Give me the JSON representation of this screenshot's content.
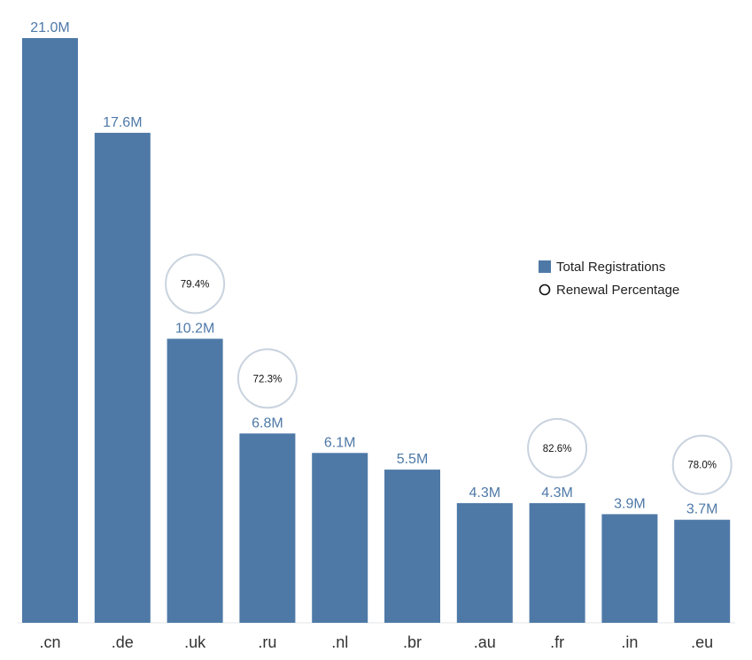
{
  "chart_data": {
    "type": "bar",
    "categories": [
      ".cn",
      ".de",
      ".uk",
      ".ru",
      ".nl",
      ".br",
      ".au",
      ".fr",
      ".in",
      ".eu"
    ],
    "series": [
      {
        "name": "Total Registrations",
        "values": [
          21.0,
          17.6,
          10.2,
          6.8,
          6.1,
          5.5,
          4.3,
          4.3,
          3.9,
          3.7
        ],
        "labels": [
          "21.0M",
          "17.6M",
          "10.2M",
          "6.8M",
          "6.1M",
          "5.5M",
          "4.3M",
          "4.3M",
          "3.9M",
          "3.7M"
        ]
      },
      {
        "name": "Renewal Percentage",
        "points": [
          {
            "category": ".uk",
            "value": 79.4,
            "label": "79.4%"
          },
          {
            "category": ".ru",
            "value": 72.3,
            "label": "72.3%"
          },
          {
            "category": ".fr",
            "value": 82.6,
            "label": "82.6%"
          },
          {
            "category": ".eu",
            "value": 78.0,
            "label": "78.0%"
          }
        ]
      }
    ],
    "ylim": [
      0,
      21.0
    ],
    "grid": false,
    "legend_position": "right",
    "legend": [
      {
        "label": "Total Registrations",
        "marker": "square"
      },
      {
        "label": "Renewal Percentage",
        "marker": "circle"
      }
    ],
    "colors": {
      "bar": "#4e79a7",
      "circle_stroke": "#c9d3df"
    }
  }
}
